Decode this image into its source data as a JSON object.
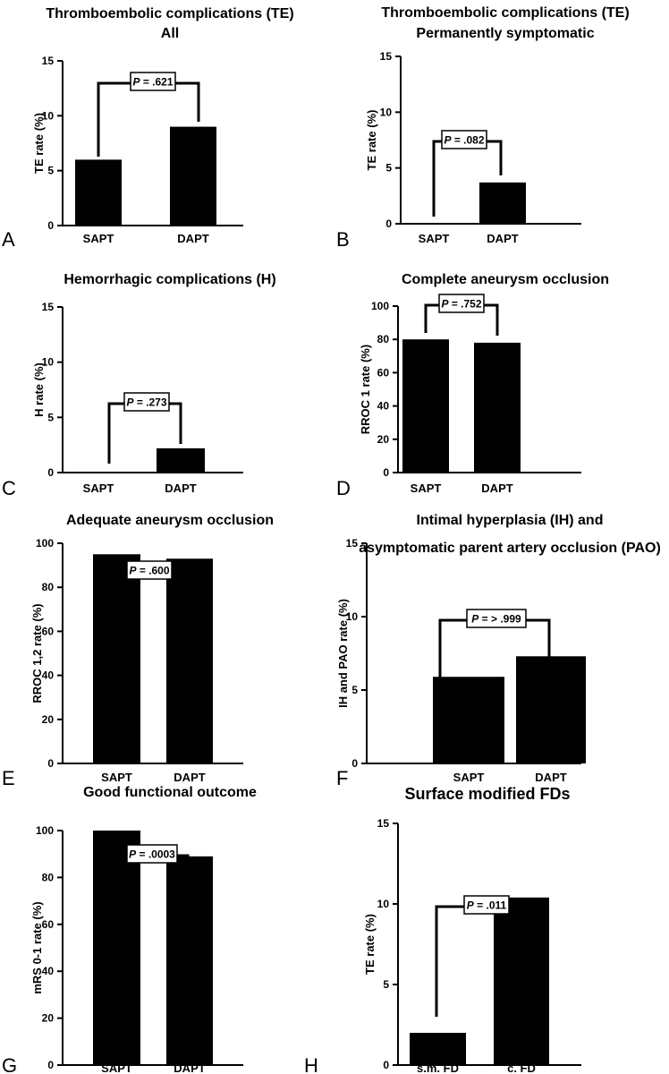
{
  "chart_data": [
    {
      "panel": "A",
      "type": "bar",
      "title": [
        "Thromboembolic complications (TE)",
        "All"
      ],
      "ylabel": "TE rate (%)",
      "categories": [
        "SAPT",
        "DAPT"
      ],
      "values": [
        6,
        9
      ],
      "ylim": [
        0,
        15
      ],
      "yticks": [
        0,
        5,
        10,
        15
      ],
      "p_value": "= .621"
    },
    {
      "panel": "B",
      "type": "bar",
      "title": [
        "Thromboembolic complications (TE)",
        "Permanently symptomatic"
      ],
      "ylabel": "TE rate (%)",
      "categories": [
        "SAPT",
        "DAPT"
      ],
      "values": [
        0,
        3.7
      ],
      "ylim": [
        0,
        15
      ],
      "yticks": [
        0,
        5,
        10,
        15
      ],
      "p_value": "= .082"
    },
    {
      "panel": "C",
      "type": "bar",
      "title": [
        "Hemorrhagic complications (H)"
      ],
      "ylabel": "H rate (%)",
      "categories": [
        "SAPT",
        "DAPT"
      ],
      "values": [
        0,
        2.2
      ],
      "ylim": [
        0,
        15
      ],
      "yticks": [
        0,
        5,
        10,
        15
      ],
      "p_value": "= .273"
    },
    {
      "panel": "D",
      "type": "bar",
      "title": [
        "Complete aneurysm occlusion"
      ],
      "ylabel": "RROC 1 rate (%)",
      "categories": [
        "SAPT",
        "DAPT"
      ],
      "values": [
        80,
        78
      ],
      "ylim": [
        0,
        100
      ],
      "yticks": [
        0,
        20,
        40,
        60,
        80,
        100
      ],
      "p_value": "= .752"
    },
    {
      "panel": "E",
      "type": "bar",
      "title": [
        "Adequate aneurysm occlusion"
      ],
      "ylabel": "RROC 1,2 rate (%)",
      "categories": [
        "SAPT",
        "DAPT"
      ],
      "values": [
        95,
        93
      ],
      "ylim": [
        0,
        100
      ],
      "yticks": [
        0,
        20,
        40,
        60,
        80,
        100
      ],
      "p_value": "= .600"
    },
    {
      "panel": "F",
      "type": "bar",
      "title": [
        "Intimal hyperplasia (IH) and",
        "asymptomatic parent artery occlusion (PAO)"
      ],
      "ylabel": "IH and PAO rate (%)",
      "categories": [
        "SAPT",
        "DAPT"
      ],
      "values": [
        5.9,
        7.3
      ],
      "ylim": [
        0,
        15
      ],
      "yticks": [
        0,
        5,
        10,
        15
      ],
      "p_value": "= > .999"
    },
    {
      "panel": "G",
      "type": "bar",
      "title": [
        "Good functional outcome"
      ],
      "ylabel": "mRS 0-1 rate (%)",
      "categories": [
        "SAPT",
        "DAPT"
      ],
      "values": [
        100,
        89
      ],
      "ylim": [
        0,
        100
      ],
      "yticks": [
        0,
        20,
        40,
        60,
        80,
        100
      ],
      "p_value": "= .0003"
    },
    {
      "panel": "H",
      "type": "bar",
      "title": [
        "Surface modified FDs"
      ],
      "ylabel": "TE rate (%)",
      "categories": [
        "s.m. FD",
        "c. FD"
      ],
      "values": [
        2.0,
        10.4
      ],
      "ylim": [
        0,
        15
      ],
      "yticks": [
        0,
        5,
        10,
        15
      ],
      "p_value": "= .011"
    }
  ]
}
